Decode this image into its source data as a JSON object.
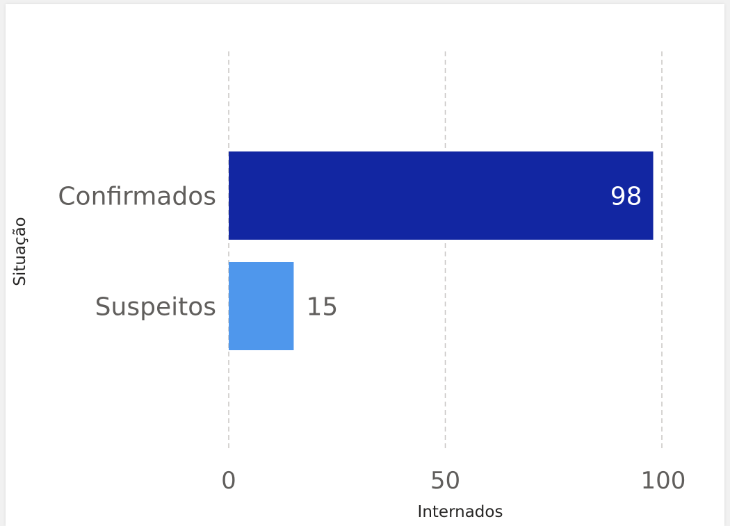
{
  "chart_data": {
    "type": "bar",
    "orientation": "horizontal",
    "categories": [
      "Confirmados",
      "Suspeitos"
    ],
    "values": [
      98,
      15
    ],
    "colors": [
      "#1226a2",
      "#4f97ec"
    ],
    "xlabel": "Internados",
    "ylabel": "Situação",
    "xlim": [
      0,
      100
    ],
    "xticks": [
      "0",
      "50",
      "100"
    ],
    "data_labels": [
      "98",
      "15"
    ],
    "grid": "vertical-dashed",
    "grid_color": "#c8c6c4"
  }
}
